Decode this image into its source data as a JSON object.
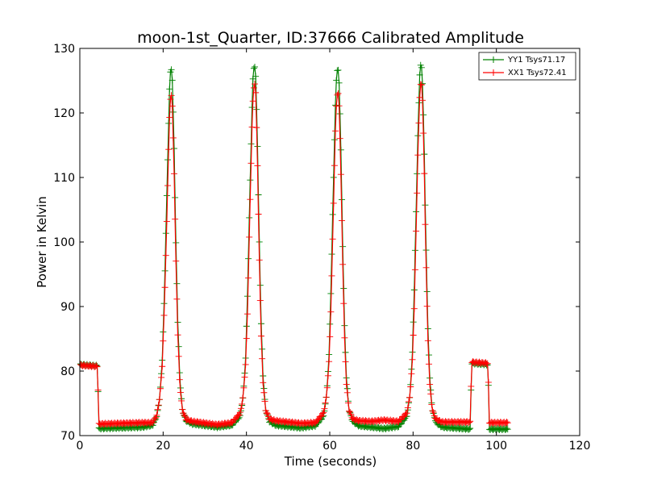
{
  "chart_data": {
    "type": "line",
    "title": "moon-1st_Quarter, ID:37666 Calibrated Amplitude",
    "xlabel": "Time (seconds)",
    "ylabel": "Power in Kelvin",
    "xlim": [
      0,
      120
    ],
    "ylim": [
      70,
      130
    ],
    "xticks": [
      0,
      20,
      40,
      60,
      80,
      100,
      120
    ],
    "yticks": [
      70,
      80,
      90,
      100,
      110,
      120,
      130
    ],
    "grid": false,
    "legend_position": "top-right",
    "markers": "plus",
    "series": [
      {
        "name": "YY1 Tsys71.17",
        "color": "#008000",
        "points": [
          [
            0.2,
            81.0
          ],
          [
            4.3,
            80.8
          ],
          [
            4.5,
            71.1
          ],
          [
            15.0,
            71.3
          ],
          [
            17.5,
            71.6
          ],
          [
            18.5,
            73.0
          ],
          [
            19.2,
            76.0
          ],
          [
            19.8,
            82.0
          ],
          [
            20.3,
            92.0
          ],
          [
            20.8,
            105.0
          ],
          [
            21.3,
            118.0
          ],
          [
            21.6,
            125.0
          ],
          [
            21.9,
            127.5
          ],
          [
            22.2,
            125.0
          ],
          [
            22.6,
            116.0
          ],
          [
            23.0,
            102.0
          ],
          [
            23.5,
            88.0
          ],
          [
            24.0,
            79.0
          ],
          [
            24.6,
            74.0
          ],
          [
            25.5,
            72.3
          ],
          [
            27.0,
            71.8
          ],
          [
            33.0,
            71.3
          ],
          [
            36.5,
            71.6
          ],
          [
            38.5,
            73.0
          ],
          [
            39.2,
            76.0
          ],
          [
            39.8,
            82.0
          ],
          [
            40.3,
            93.0
          ],
          [
            40.8,
            107.0
          ],
          [
            41.3,
            120.0
          ],
          [
            41.6,
            126.0
          ],
          [
            41.9,
            127.7
          ],
          [
            42.2,
            126.0
          ],
          [
            42.6,
            117.0
          ],
          [
            43.0,
            103.0
          ],
          [
            43.5,
            88.0
          ],
          [
            44.0,
            79.0
          ],
          [
            44.6,
            74.0
          ],
          [
            45.5,
            72.2
          ],
          [
            47.0,
            71.6
          ],
          [
            53.0,
            71.2
          ],
          [
            56.5,
            71.5
          ],
          [
            58.5,
            73.0
          ],
          [
            59.2,
            76.0
          ],
          [
            59.8,
            82.0
          ],
          [
            60.3,
            93.0
          ],
          [
            60.8,
            107.0
          ],
          [
            61.3,
            120.0
          ],
          [
            61.6,
            125.5
          ],
          [
            61.9,
            127.2
          ],
          [
            62.2,
            125.5
          ],
          [
            62.6,
            117.0
          ],
          [
            63.0,
            103.0
          ],
          [
            63.5,
            88.0
          ],
          [
            64.0,
            79.0
          ],
          [
            64.6,
            74.0
          ],
          [
            65.5,
            72.2
          ],
          [
            67.0,
            71.5
          ],
          [
            73.0,
            71.1
          ],
          [
            76.5,
            71.4
          ],
          [
            78.5,
            73.0
          ],
          [
            79.2,
            76.0
          ],
          [
            79.8,
            82.0
          ],
          [
            80.3,
            93.0
          ],
          [
            80.8,
            107.0
          ],
          [
            81.3,
            120.0
          ],
          [
            81.6,
            126.0
          ],
          [
            81.9,
            127.8
          ],
          [
            82.2,
            126.0
          ],
          [
            82.6,
            117.0
          ],
          [
            83.0,
            103.0
          ],
          [
            83.5,
            88.0
          ],
          [
            84.0,
            79.0
          ],
          [
            84.6,
            74.0
          ],
          [
            85.5,
            72.0
          ],
          [
            87.0,
            71.3
          ],
          [
            93.8,
            71.0
          ],
          [
            94.0,
            81.2
          ],
          [
            98.0,
            81.0
          ],
          [
            98.3,
            71.0
          ],
          [
            102.8,
            71.0
          ]
        ]
      },
      {
        "name": "XX1 Tsys72.41",
        "color": "#ff0000",
        "points": [
          [
            0.2,
            80.9
          ],
          [
            4.3,
            80.7
          ],
          [
            4.5,
            71.8
          ],
          [
            15.0,
            72.0
          ],
          [
            17.5,
            72.0
          ],
          [
            18.5,
            73.2
          ],
          [
            19.2,
            76.0
          ],
          [
            19.8,
            81.0
          ],
          [
            20.3,
            90.0
          ],
          [
            20.8,
            101.0
          ],
          [
            21.3,
            114.0
          ],
          [
            21.6,
            120.5
          ],
          [
            21.9,
            123.5
          ],
          [
            22.2,
            121.0
          ],
          [
            22.6,
            112.0
          ],
          [
            23.0,
            99.0
          ],
          [
            23.5,
            86.0
          ],
          [
            24.0,
            78.0
          ],
          [
            24.6,
            74.0
          ],
          [
            25.5,
            72.5
          ],
          [
            27.0,
            72.2
          ],
          [
            33.0,
            71.7
          ],
          [
            36.5,
            72.0
          ],
          [
            38.5,
            73.5
          ],
          [
            39.2,
            76.0
          ],
          [
            39.8,
            81.0
          ],
          [
            40.3,
            90.0
          ],
          [
            40.8,
            104.0
          ],
          [
            41.3,
            117.0
          ],
          [
            41.6,
            122.5
          ],
          [
            41.9,
            125.0
          ],
          [
            42.2,
            123.5
          ],
          [
            42.6,
            114.0
          ],
          [
            43.0,
            100.0
          ],
          [
            43.5,
            86.0
          ],
          [
            44.0,
            78.0
          ],
          [
            44.6,
            74.0
          ],
          [
            45.5,
            72.6
          ],
          [
            47.0,
            72.3
          ],
          [
            53.0,
            71.9
          ],
          [
            56.5,
            72.0
          ],
          [
            58.5,
            73.5
          ],
          [
            59.2,
            76.0
          ],
          [
            59.8,
            81.0
          ],
          [
            60.3,
            90.0
          ],
          [
            60.8,
            103.0
          ],
          [
            61.3,
            116.0
          ],
          [
            61.6,
            121.5
          ],
          [
            61.9,
            123.5
          ],
          [
            62.2,
            122.0
          ],
          [
            62.6,
            113.0
          ],
          [
            63.0,
            100.0
          ],
          [
            63.5,
            86.0
          ],
          [
            64.0,
            78.0
          ],
          [
            64.6,
            74.0
          ],
          [
            65.5,
            72.6
          ],
          [
            67.0,
            72.3
          ],
          [
            70.0,
            72.2
          ],
          [
            73.0,
            72.4
          ],
          [
            76.5,
            72.2
          ],
          [
            78.5,
            73.5
          ],
          [
            79.2,
            76.0
          ],
          [
            79.8,
            81.0
          ],
          [
            80.3,
            90.0
          ],
          [
            80.8,
            104.0
          ],
          [
            81.3,
            117.0
          ],
          [
            81.6,
            122.5
          ],
          [
            81.9,
            125.0
          ],
          [
            82.2,
            123.5
          ],
          [
            82.6,
            114.0
          ],
          [
            83.0,
            100.0
          ],
          [
            83.5,
            86.0
          ],
          [
            84.0,
            78.0
          ],
          [
            84.6,
            74.0
          ],
          [
            85.5,
            72.5
          ],
          [
            87.0,
            72.1
          ],
          [
            93.8,
            72.1
          ],
          [
            94.0,
            81.4
          ],
          [
            98.0,
            81.2
          ],
          [
            98.3,
            72.0
          ],
          [
            102.8,
            72.0
          ]
        ]
      }
    ]
  }
}
